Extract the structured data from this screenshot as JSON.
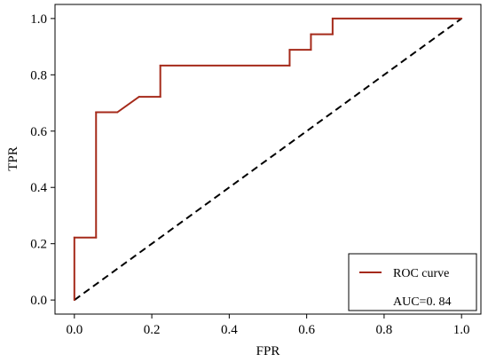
{
  "chart_data": {
    "type": "line",
    "xlabel": "FPR",
    "ylabel": "TPR",
    "xlim": [
      -0.05,
      1.05
    ],
    "ylim": [
      -0.05,
      1.05
    ],
    "xticks": [
      "0.0",
      "0.2",
      "0.4",
      "0.6",
      "0.8",
      "1.0"
    ],
    "yticks": [
      "0.0",
      "0.2",
      "0.4",
      "0.6",
      "0.8",
      "1.0"
    ],
    "grid": false,
    "legend_position": "bottom-right",
    "series": [
      {
        "name": "ROC curve",
        "color": "#a52a1a",
        "x": [
          0.0,
          0.0,
          0.056,
          0.056,
          0.111,
          0.167,
          0.222,
          0.222,
          0.556,
          0.556,
          0.611,
          0.611,
          0.667,
          0.667,
          1.0
        ],
        "y": [
          0.0,
          0.222,
          0.222,
          0.667,
          0.667,
          0.722,
          0.722,
          0.833,
          0.833,
          0.889,
          0.889,
          0.944,
          0.944,
          1.0,
          1.0
        ]
      }
    ],
    "reference_line": {
      "color": "#000000",
      "style": "dashed",
      "x": [
        0.0,
        1.0
      ],
      "y": [
        0.0,
        1.0
      ]
    },
    "annotation": "AUC=0. 84"
  }
}
